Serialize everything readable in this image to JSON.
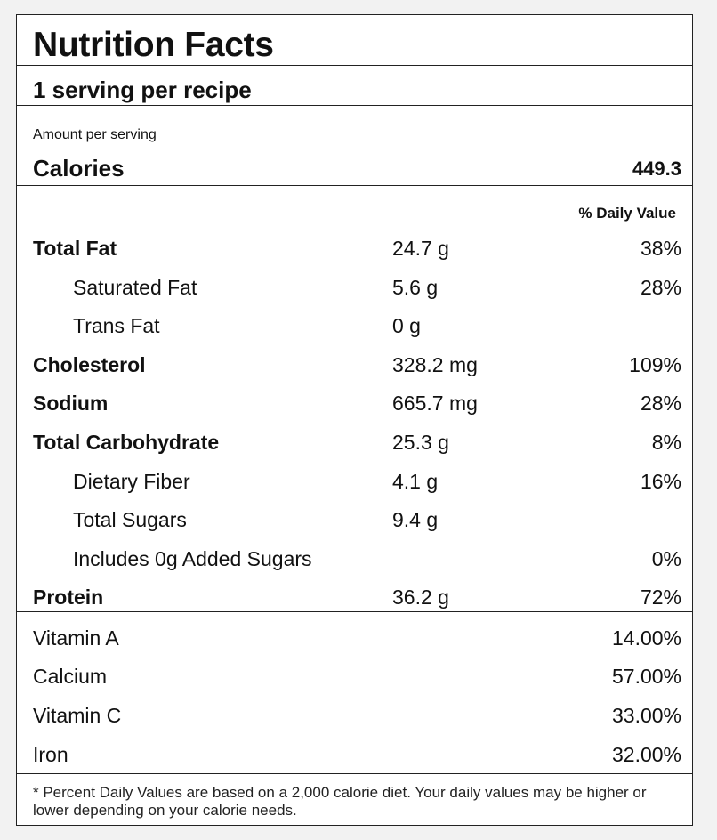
{
  "title": "Nutrition Facts",
  "servings": "1 serving per recipe",
  "amount_per_serving": "Amount per serving",
  "calories": {
    "label": "Calories",
    "value": "449.3"
  },
  "daily_value_header": "% Daily Value",
  "nutrients": [
    {
      "name": "Total Fat",
      "amount": "24.7 g",
      "dv": "38%"
    },
    {
      "name": "Saturated Fat",
      "amount": "5.6 g",
      "dv": "28%"
    },
    {
      "name": "Trans Fat",
      "amount": "0 g",
      "dv": ""
    },
    {
      "name": "Cholesterol",
      "amount": "328.2 mg",
      "dv": "109%"
    },
    {
      "name": "Sodium",
      "amount": "665.7 mg",
      "dv": "28%"
    },
    {
      "name": "Total Carbohydrate",
      "amount": "25.3 g",
      "dv": "8%"
    },
    {
      "name": "Dietary Fiber",
      "amount": "4.1 g",
      "dv": "16%"
    },
    {
      "name": "Total Sugars",
      "amount": "9.4 g",
      "dv": ""
    },
    {
      "name": "Includes 0g Added Sugars",
      "amount": "",
      "dv": "0%"
    },
    {
      "name": "Protein",
      "amount": "36.2 g",
      "dv": "72%"
    }
  ],
  "vitamins": [
    {
      "name": "Vitamin A",
      "dv": "14.00%"
    },
    {
      "name": "Calcium",
      "dv": "57.00%"
    },
    {
      "name": "Vitamin C",
      "dv": "33.00%"
    },
    {
      "name": "Iron",
      "dv": "32.00%"
    }
  ],
  "footnote": "* Percent Daily Values are based on a 2,000 calorie diet. Your daily values may be higher or lower depending on your calorie needs."
}
